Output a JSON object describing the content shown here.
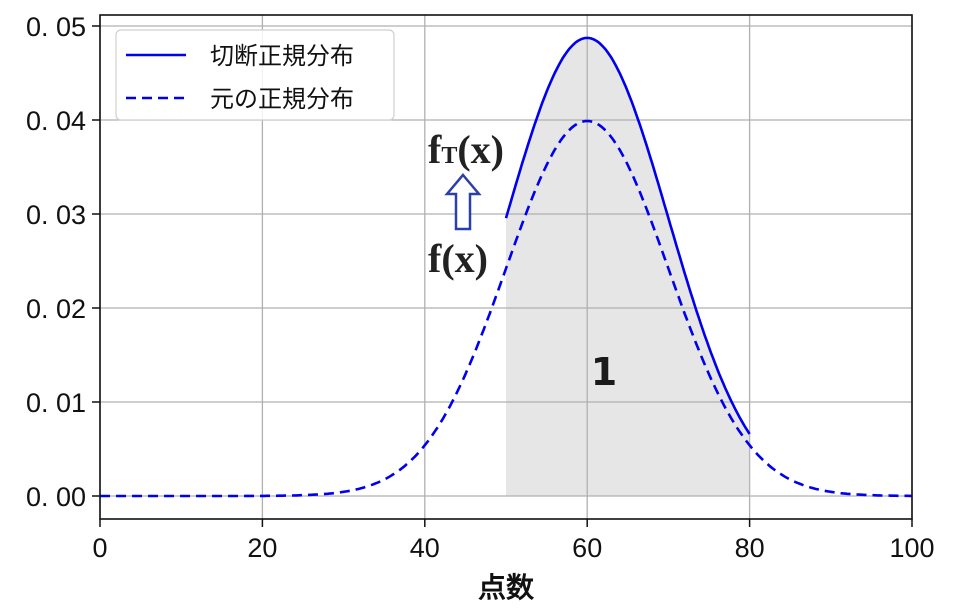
{
  "chart_data": {
    "type": "line",
    "title": "",
    "xlabel": "点数",
    "ylabel": "",
    "xlim": [
      0,
      100
    ],
    "ylim": [
      -0.0025,
      0.0515
    ],
    "grid": true,
    "legend_position": "upper left",
    "xticks": [
      0,
      20,
      40,
      60,
      80,
      100
    ],
    "xtick_labels": [
      "0",
      "20",
      "40",
      "60",
      "80",
      "100"
    ],
    "yticks": [
      0.0,
      0.01,
      0.02,
      0.03,
      0.04,
      0.05
    ],
    "ytick_labels": [
      "0.00",
      "0.01",
      "0.02",
      "0.03",
      "0.04",
      "0.05"
    ],
    "series": [
      {
        "name": "切断正規分布",
        "style": "solid",
        "color": "#0000ee",
        "x": [
          50,
          52,
          54,
          56,
          58,
          60,
          62,
          64,
          66,
          68,
          70,
          72,
          74,
          76,
          78,
          80
        ],
        "y": [
          0.0296,
          0.0358,
          0.0407,
          0.045,
          0.0478,
          0.0487,
          0.0478,
          0.045,
          0.0407,
          0.0358,
          0.0296,
          0.0237,
          0.0182,
          0.0135,
          0.0096,
          0.0066
        ]
      },
      {
        "name": "元の正規分布",
        "style": "dashed",
        "color": "#0000ee",
        "x": [
          0,
          10,
          20,
          25,
          30,
          35,
          40,
          45,
          50,
          55,
          60,
          65,
          70,
          75,
          80,
          85,
          90,
          95,
          100
        ],
        "y": [
          0.0,
          0.0,
          0.0,
          0.0001,
          0.0004,
          0.0018,
          0.0054,
          0.013,
          0.0242,
          0.0352,
          0.0399,
          0.0352,
          0.0242,
          0.013,
          0.0054,
          0.0018,
          0.0004,
          0.0001,
          0.0
        ]
      }
    ],
    "shaded_region": {
      "x_from": 50,
      "x_to": 80,
      "under": "切断正規分布",
      "color": "#e6e6e6",
      "label": "1"
    },
    "parameters": {
      "mean": 60,
      "sd": 10,
      "truncation": [
        50,
        80
      ]
    },
    "annotations": [
      {
        "text_main": "f",
        "text_sub": "T",
        "text_tail": "(x)",
        "x": 44,
        "y": 0.036
      },
      {
        "text": "f(x)",
        "x": 44,
        "y": 0.025
      },
      {
        "type": "arrow-up",
        "from": "f(x)",
        "to": "fT(x)"
      }
    ]
  },
  "legend": {
    "items": [
      {
        "label": "切断正規分布",
        "style": "solid"
      },
      {
        "label": "元の正規分布",
        "style": "dashed"
      }
    ]
  },
  "labels": {
    "area": "1",
    "ft_main": "f",
    "ft_sub": "T",
    "ft_tail": "(x)",
    "f": "f(x)",
    "xlabel": "点数"
  }
}
